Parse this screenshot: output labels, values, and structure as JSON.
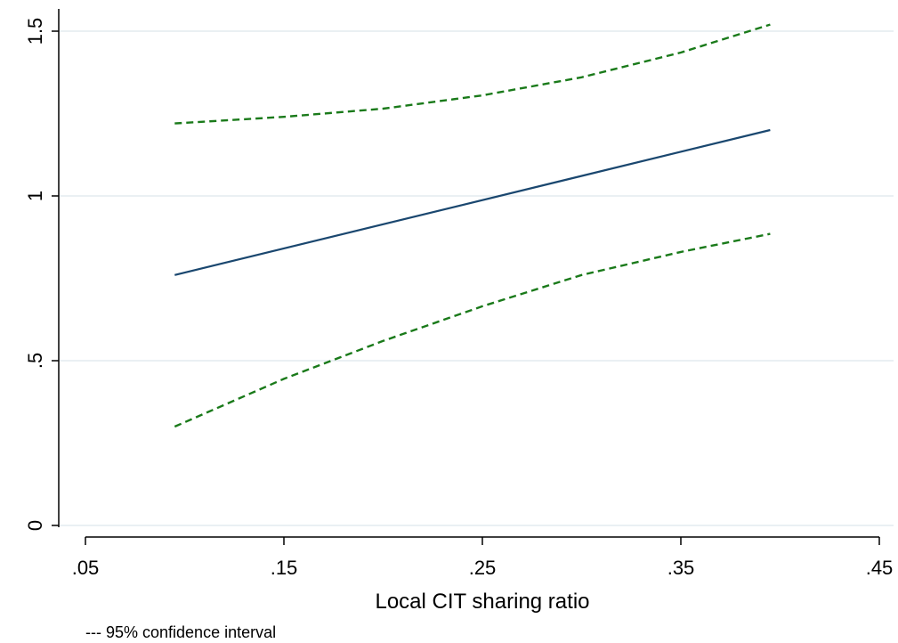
{
  "chart_data": {
    "type": "line",
    "title": "",
    "xlabel": "Local CIT sharing ratio",
    "ylabel": "",
    "note": "--- 95% confidence interval",
    "xlim": [
      0.05,
      0.45
    ],
    "ylim": [
      0,
      1.5
    ],
    "grid": "horizontal",
    "xticks": [
      {
        "value": 0.05,
        "label": ".05"
      },
      {
        "value": 0.15,
        "label": ".15"
      },
      {
        "value": 0.25,
        "label": ".25"
      },
      {
        "value": 0.35,
        "label": ".35"
      },
      {
        "value": 0.45,
        "label": ".45"
      }
    ],
    "yticks": [
      {
        "value": 0,
        "label": "0"
      },
      {
        "value": 0.5,
        "label": ".5"
      },
      {
        "value": 1,
        "label": "1"
      },
      {
        "value": 1.5,
        "label": "1.5"
      }
    ],
    "series": [
      {
        "role": "estimate",
        "color": "#1a476f",
        "dash": "solid",
        "points": [
          [
            0.095,
            0.76
          ],
          [
            0.395,
            1.2
          ]
        ]
      },
      {
        "role": "upper-bound",
        "color": "#1a7a1a",
        "dash": "dashed",
        "points": [
          [
            0.095,
            1.22
          ],
          [
            0.15,
            1.24
          ],
          [
            0.2,
            1.265
          ],
          [
            0.25,
            1.305
          ],
          [
            0.3,
            1.36
          ],
          [
            0.35,
            1.435
          ],
          [
            0.395,
            1.52
          ]
        ]
      },
      {
        "role": "lower-bound",
        "color": "#1a7a1a",
        "dash": "dashed",
        "points": [
          [
            0.095,
            0.3
          ],
          [
            0.15,
            0.445
          ],
          [
            0.2,
            0.56
          ],
          [
            0.25,
            0.665
          ],
          [
            0.3,
            0.76
          ],
          [
            0.35,
            0.83
          ],
          [
            0.395,
            0.885
          ]
        ]
      }
    ]
  }
}
